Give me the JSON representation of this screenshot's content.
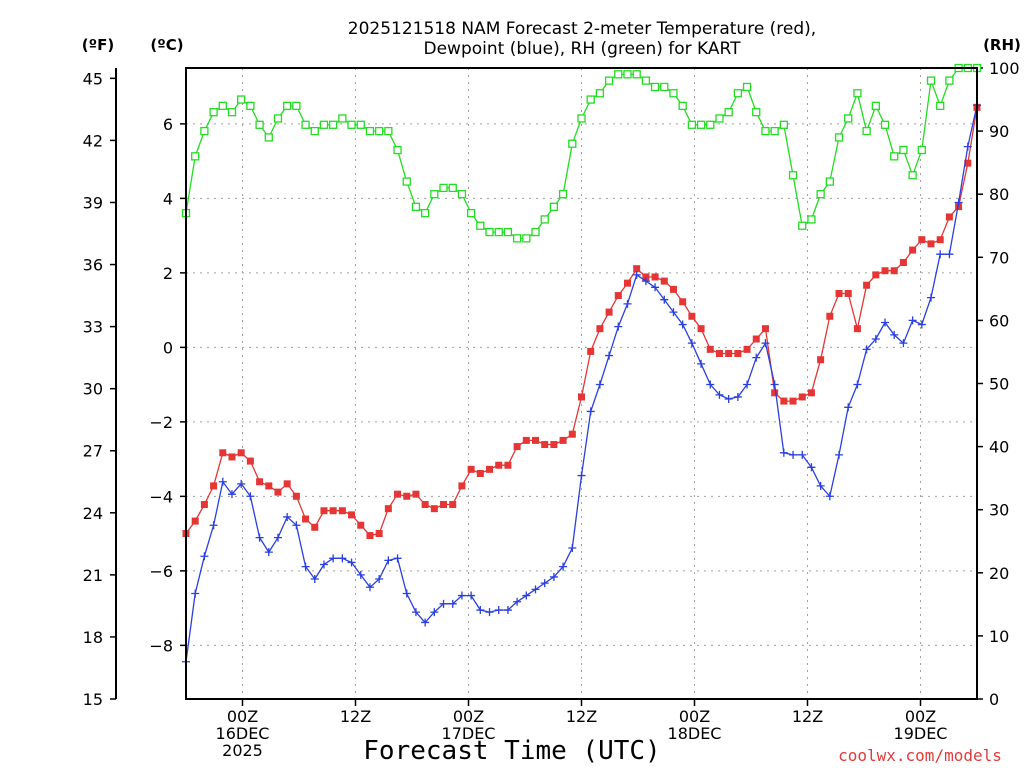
{
  "chart_data": {
    "type": "line",
    "title_line1": "2025121518 NAM Forecast 2-meter Temperature (red),",
    "title_line2": "Dewpoint (blue), RH (green) for KART",
    "xlabel": "Forecast Time (UTC)",
    "credit": "coolwx.com/models",
    "units": {
      "f": "(ºF)",
      "c": "(ºC)",
      "rh": "(RH)"
    },
    "x_range_hours": [
      0,
      84
    ],
    "x_ticks": [
      {
        "hour": 6,
        "lines": [
          "00Z",
          "16DEC",
          "2025"
        ]
      },
      {
        "hour": 18,
        "lines": [
          "12Z"
        ]
      },
      {
        "hour": 30,
        "lines": [
          "00Z",
          "17DEC"
        ]
      },
      {
        "hour": 42,
        "lines": [
          "12Z"
        ]
      },
      {
        "hour": 54,
        "lines": [
          "00Z",
          "18DEC"
        ]
      },
      {
        "hour": 66,
        "lines": [
          "12Z"
        ]
      },
      {
        "hour": 78,
        "lines": [
          "00Z",
          "19DEC"
        ]
      }
    ],
    "left_axis_f": {
      "range": [
        15,
        45.5
      ],
      "ticks": [
        "15",
        "18",
        "21",
        "24",
        "27",
        "30",
        "33",
        "36",
        "39",
        "42",
        "45"
      ]
    },
    "left_axis_c": {
      "range": [
        -9.44,
        7.5
      ],
      "ticks": [
        "−8",
        "−6",
        "−4",
        "−2",
        "0",
        "2",
        "4",
        "6"
      ]
    },
    "right_axis_rh": {
      "range": [
        0,
        100
      ],
      "ticks": [
        "0",
        "10",
        "20",
        "30",
        "40",
        "50",
        "60",
        "70",
        "80",
        "90",
        "100"
      ]
    },
    "series": [
      {
        "name": "2-meter Temperature",
        "unit": "F",
        "color": "#e53535",
        "marker": "filled-square",
        "values": [
          23.0,
          23.6,
          24.4,
          25.3,
          26.9,
          26.7,
          26.9,
          26.5,
          25.5,
          25.3,
          25.0,
          25.4,
          24.8,
          23.7,
          23.3,
          24.1,
          24.1,
          24.1,
          23.9,
          23.4,
          22.9,
          23.0,
          24.2,
          24.9,
          24.8,
          24.9,
          24.4,
          24.2,
          24.4,
          24.4,
          25.3,
          26.1,
          25.9,
          26.1,
          26.3,
          26.3,
          27.2,
          27.5,
          27.5,
          27.3,
          27.3,
          27.5,
          27.8,
          29.6,
          31.8,
          32.9,
          33.7,
          34.5,
          35.1,
          35.8,
          35.4,
          35.4,
          35.2,
          34.8,
          34.2,
          33.5,
          32.9,
          31.9,
          31.7,
          31.7,
          31.7,
          31.9,
          32.4,
          32.9,
          29.8,
          29.4,
          29.4,
          29.6,
          29.8,
          31.4,
          33.5,
          34.6,
          34.6,
          32.9,
          35.0,
          35.5,
          35.7,
          35.7,
          36.1,
          36.7,
          37.2,
          37.0,
          37.2,
          38.3,
          38.8,
          40.9,
          43.6
        ]
      },
      {
        "name": "Dewpoint",
        "unit": "F",
        "color": "#2a3fe0",
        "marker": "plus",
        "values": [
          16.8,
          20.1,
          21.9,
          23.4,
          25.5,
          24.9,
          25.4,
          24.8,
          22.8,
          22.1,
          22.8,
          23.8,
          23.4,
          21.4,
          20.8,
          21.5,
          21.8,
          21.8,
          21.6,
          21.0,
          20.4,
          20.8,
          21.7,
          21.8,
          20.1,
          19.2,
          18.7,
          19.2,
          19.6,
          19.6,
          20.0,
          20.0,
          19.3,
          19.2,
          19.3,
          19.3,
          19.7,
          20.0,
          20.3,
          20.6,
          20.9,
          21.4,
          22.3,
          25.8,
          28.9,
          30.2,
          31.6,
          33.0,
          34.1,
          35.5,
          35.2,
          34.9,
          34.3,
          33.7,
          33.1,
          32.2,
          31.2,
          30.2,
          29.7,
          29.5,
          29.6,
          30.2,
          31.5,
          32.2,
          30.2,
          26.9,
          26.8,
          26.8,
          26.2,
          25.3,
          24.8,
          26.8,
          29.1,
          30.2,
          31.9,
          32.4,
          33.2,
          32.6,
          32.2,
          33.3,
          33.1,
          34.4,
          36.5,
          36.5,
          39.0,
          41.7,
          43.7
        ]
      },
      {
        "name": "Relative Humidity",
        "unit": "%",
        "color": "#22dd22",
        "marker": "open-square",
        "values": [
          77,
          86,
          90,
          93,
          94,
          93,
          95,
          94,
          91,
          89,
          92,
          94,
          94,
          91,
          90,
          91,
          91,
          92,
          91,
          91,
          90,
          90,
          90,
          87,
          82,
          78,
          77,
          80,
          81,
          81,
          80,
          77,
          75,
          74,
          74,
          74,
          73,
          73,
          74,
          76,
          78,
          80,
          88,
          92,
          95,
          96,
          98,
          99,
          99,
          99,
          98,
          97,
          97,
          96,
          94,
          91,
          91,
          91,
          92,
          93,
          96,
          97,
          93,
          90,
          90,
          91,
          83,
          75,
          76,
          80,
          82,
          89,
          92,
          96,
          90,
          94,
          91,
          86,
          87,
          83,
          87,
          98,
          94,
          98,
          100,
          100,
          100
        ]
      }
    ]
  }
}
